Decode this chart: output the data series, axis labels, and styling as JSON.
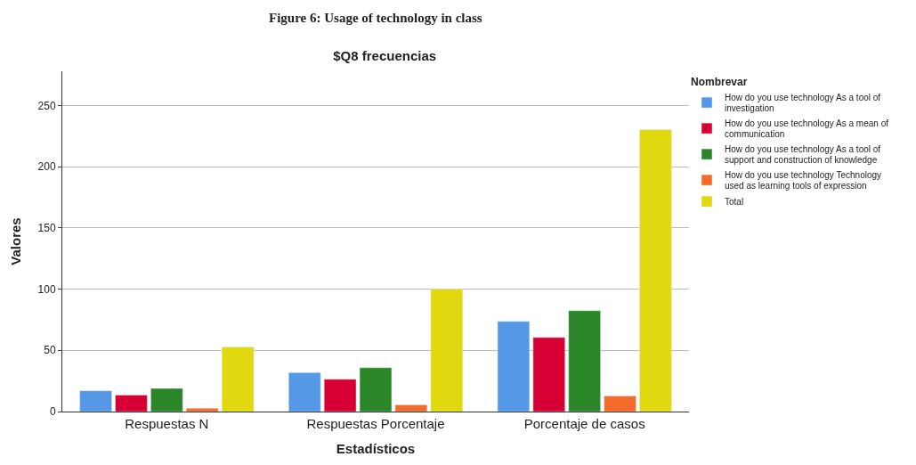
{
  "chart_data": {
    "type": "bar",
    "title": "$Q8 frecuencias",
    "xlabel": "Estadísticos",
    "ylabel": "Valores",
    "legend_title": "Nombrevar",
    "annotations": [
      "Figure 6: Usage of technology in class"
    ],
    "categories": [
      "Respuestas N",
      "Respuestas Porcentaje",
      "Porcentaje de casos"
    ],
    "series": [
      {
        "name": "How do you use technology As a tool of investigation",
        "color": "#5599e6",
        "values": [
          17,
          31.8,
          73.6
        ]
      },
      {
        "name": "How do you use technology As a mean of communication",
        "color": "#d70034",
        "values": [
          13.5,
          26.4,
          60.5
        ]
      },
      {
        "name": "How do you use technology As a tool of support and construction of knowledge",
        "color": "#2a8629",
        "values": [
          18.9,
          35.8,
          82.4
        ]
      },
      {
        "name": "How do you use technology Technology used as learning tools of expression",
        "color": "#f26b2a",
        "values": [
          2.7,
          5.4,
          12.8
        ]
      },
      {
        "name": "Total",
        "color": "#e2d810",
        "values": [
          52.7,
          100,
          230.4
        ]
      }
    ],
    "ylim": [
      0,
      278
    ],
    "yticks": [
      0,
      50,
      100,
      150,
      200,
      250
    ],
    "grid": "y",
    "legend": "top right"
  }
}
